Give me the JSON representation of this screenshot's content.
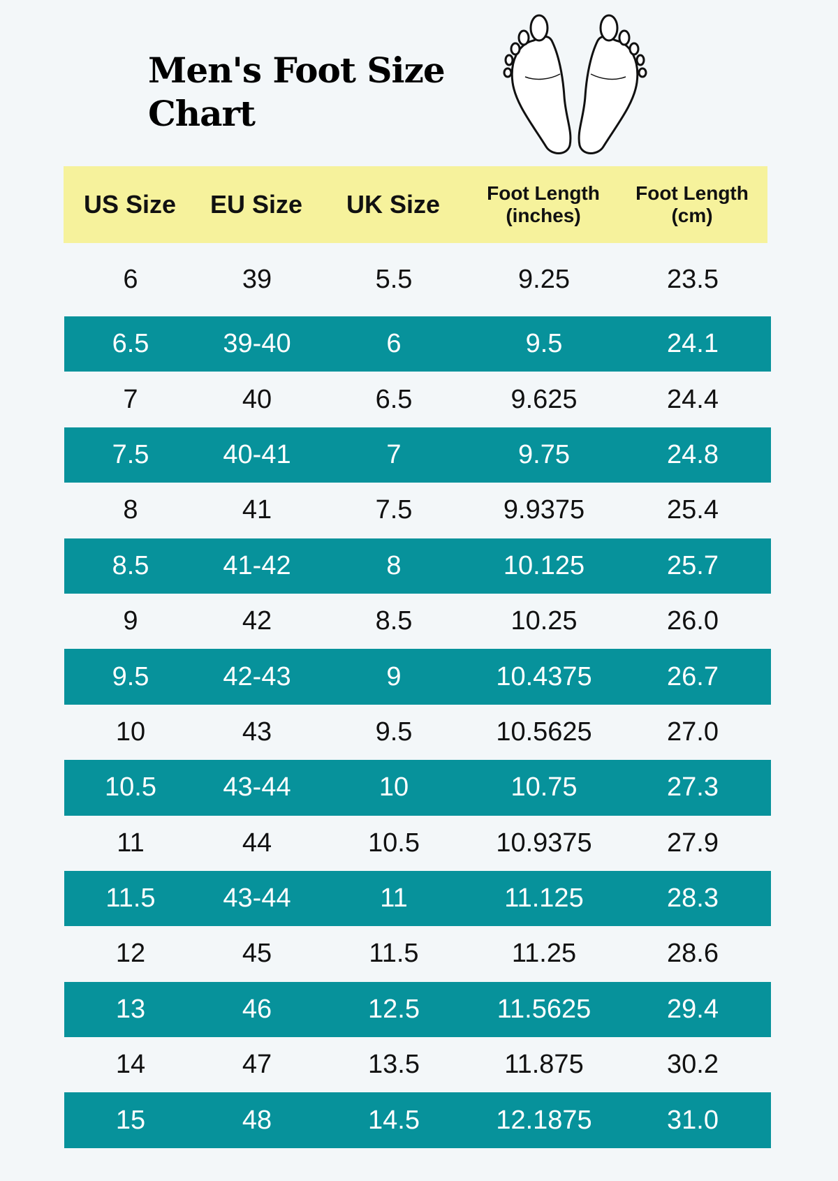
{
  "header": {
    "title": "Men's Foot Size Chart"
  },
  "table": {
    "columns": [
      "US Size",
      "EU Size",
      "UK Size",
      "Foot Length (inches)",
      "Foot Length (cm)"
    ],
    "rows": [
      [
        "6",
        "39",
        "5.5",
        "9.25",
        "23.5"
      ],
      [
        "6.5",
        "39-40",
        "6",
        "9.5",
        "24.1"
      ],
      [
        "7",
        "40",
        "6.5",
        "9.625",
        "24.4"
      ],
      [
        "7.5",
        "40-41",
        "7",
        "9.75",
        "24.8"
      ],
      [
        "8",
        "41",
        "7.5",
        "9.9375",
        "25.4"
      ],
      [
        "8.5",
        "41-42",
        "8",
        "10.125",
        "25.7"
      ],
      [
        "9",
        "42",
        "8.5",
        "10.25",
        "26.0"
      ],
      [
        "9.5",
        "42-43",
        "9",
        "10.4375",
        "26.7"
      ],
      [
        "10",
        "43",
        "9.5",
        "10.5625",
        "27.0"
      ],
      [
        "10.5",
        "43-44",
        "10",
        "10.75",
        "27.3"
      ],
      [
        "11",
        "44",
        "10.5",
        "10.9375",
        "27.9"
      ],
      [
        "11.5",
        "43-44",
        "11",
        "11.125",
        "28.3"
      ],
      [
        "12",
        "45",
        "11.5",
        "11.25",
        "28.6"
      ],
      [
        "13",
        "46",
        "12.5",
        "11.5625",
        "29.4"
      ],
      [
        "14",
        "47",
        "13.5",
        "11.875",
        "30.2"
      ],
      [
        "15",
        "48",
        "14.5",
        "12.1875",
        "31.0"
      ]
    ]
  }
}
